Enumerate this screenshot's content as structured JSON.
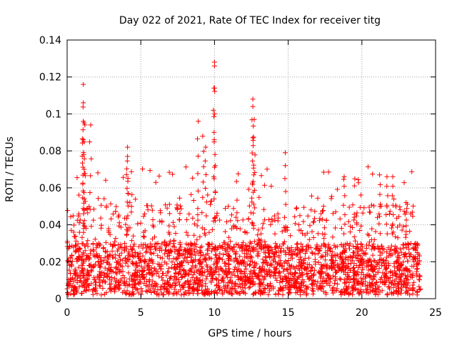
{
  "chart_data": {
    "type": "scatter",
    "title": "Day 022 of 2021, Rate Of TEC Index for receiver titg",
    "xlabel": "GPS time / hours",
    "ylabel": "ROTI / TECUs",
    "xlim": [
      0,
      25
    ],
    "ylim": [
      0,
      0.14
    ],
    "x_ticks": [
      0,
      5,
      10,
      15,
      20,
      25
    ],
    "x_tick_labels": [
      "0",
      "5",
      "10",
      "15",
      "20",
      "25"
    ],
    "y_ticks": [
      0,
      0.02,
      0.04,
      0.06,
      0.08,
      0.1,
      0.12,
      0.14
    ],
    "y_tick_labels": [
      "0",
      "0.02",
      "0.04",
      "0.06",
      "0.08",
      "0.1",
      "0.12",
      "0.14"
    ],
    "grid": true,
    "marker": "+",
    "color": "#ff0000",
    "series": [
      {
        "name": "ROTI",
        "x_range": [
          0,
          24
        ],
        "baseline_range": [
          0.002,
          0.03
        ],
        "notable_points": [
          {
            "x": 1.1,
            "y": 0.116
          },
          {
            "x": 1.1,
            "y": 0.106
          },
          {
            "x": 1.1,
            "y": 0.096
          },
          {
            "x": 1.2,
            "y": 0.094
          },
          {
            "x": 1.1,
            "y": 0.086
          },
          {
            "x": 1.6,
            "y": 0.094
          },
          {
            "x": 4.1,
            "y": 0.082
          },
          {
            "x": 4.1,
            "y": 0.077
          },
          {
            "x": 8.9,
            "y": 0.096
          },
          {
            "x": 9.2,
            "y": 0.088
          },
          {
            "x": 9.4,
            "y": 0.082
          },
          {
            "x": 10.0,
            "y": 0.128
          },
          {
            "x": 10.0,
            "y": 0.126
          },
          {
            "x": 10.0,
            "y": 0.114
          },
          {
            "x": 12.6,
            "y": 0.108
          },
          {
            "x": 12.6,
            "y": 0.104
          },
          {
            "x": 12.7,
            "y": 0.097
          },
          {
            "x": 12.6,
            "y": 0.087
          },
          {
            "x": 14.8,
            "y": 0.079
          },
          {
            "x": 18.8,
            "y": 0.066
          },
          {
            "x": 21.2,
            "y": 0.067
          },
          {
            "x": 21.7,
            "y": 0.066
          },
          {
            "x": 22.1,
            "y": 0.066
          },
          {
            "x": 23.0,
            "y": 0.052
          }
        ]
      }
    ]
  }
}
